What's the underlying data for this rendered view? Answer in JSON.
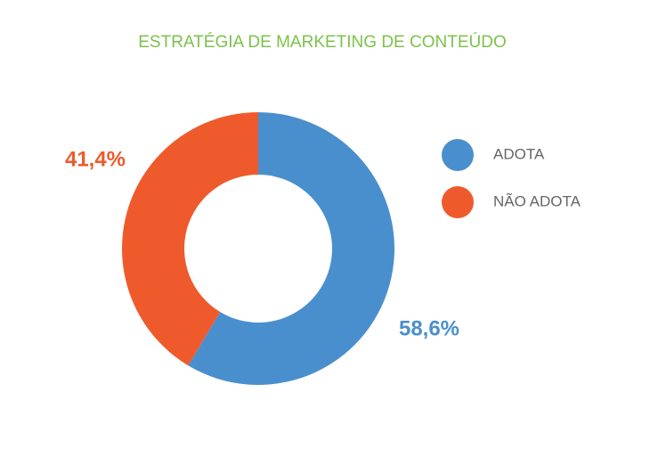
{
  "chart_data": {
    "type": "donut",
    "title": "ESTRATÉGIA DE MARKETING DE CONTEÚDO",
    "categories": [
      "ADOTA",
      "NÃO ADOTA"
    ],
    "values": [
      58.6,
      41.4
    ],
    "value_labels": [
      "58,6%",
      "41,4%"
    ],
    "colors": [
      "#4a8fcd",
      "#ef5a2c"
    ]
  }
}
